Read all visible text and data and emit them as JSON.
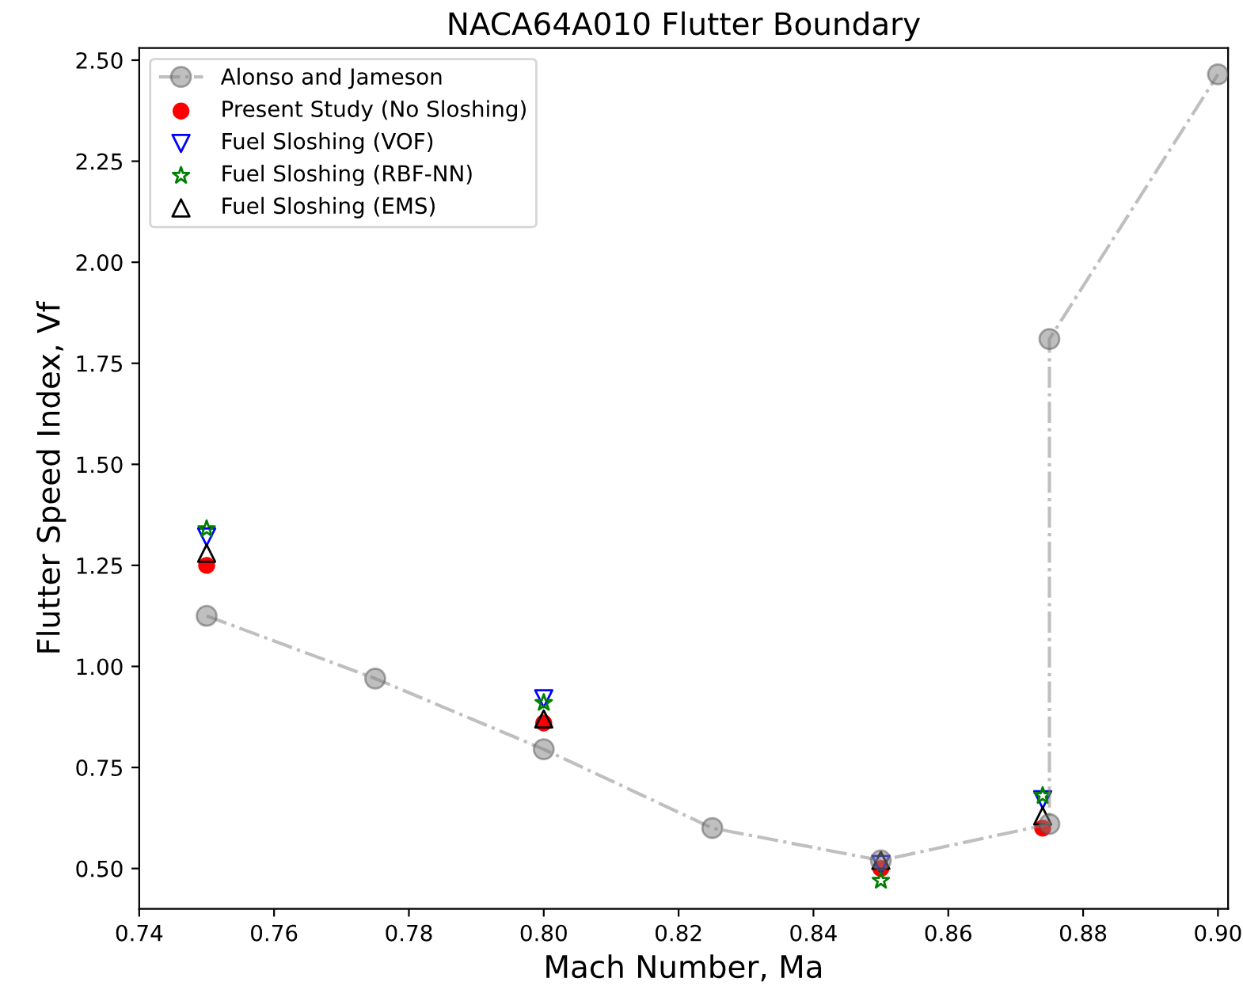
{
  "chart_data": {
    "type": "scatter",
    "title": "NACA64A010 Flutter Boundary",
    "xlabel": "Mach Number, Ma",
    "ylabel": "Flutter Speed Index, Vf",
    "xlim": [
      0.74,
      0.9015
    ],
    "ylim": [
      0.4,
      2.53
    ],
    "xticks": [
      {
        "value": 0.74,
        "label": "0.74"
      },
      {
        "value": 0.76,
        "label": "0.76"
      },
      {
        "value": 0.78,
        "label": "0.78"
      },
      {
        "value": 0.8,
        "label": "0.80"
      },
      {
        "value": 0.82,
        "label": "0.82"
      },
      {
        "value": 0.84,
        "label": "0.84"
      },
      {
        "value": 0.86,
        "label": "0.86"
      },
      {
        "value": 0.88,
        "label": "0.88"
      },
      {
        "value": 0.9,
        "label": "0.90"
      }
    ],
    "yticks": [
      {
        "value": 0.5,
        "label": "0.50"
      },
      {
        "value": 0.75,
        "label": "0.75"
      },
      {
        "value": 1.0,
        "label": "1.00"
      },
      {
        "value": 1.25,
        "label": "1.25"
      },
      {
        "value": 1.5,
        "label": "1.50"
      },
      {
        "value": 1.75,
        "label": "1.75"
      },
      {
        "value": 2.0,
        "label": "2.00"
      },
      {
        "value": 2.25,
        "label": "2.25"
      },
      {
        "value": 2.5,
        "label": "2.50"
      }
    ],
    "grid": false,
    "legend": "top left",
    "series": [
      {
        "name": "Alonso and Jameson",
        "type": "line",
        "color": "#808080",
        "marker": "circle",
        "line_style": "dashdot",
        "x": [
          0.75,
          0.775,
          0.8,
          0.825,
          0.85,
          0.875,
          0.875,
          0.9
        ],
        "values": [
          1.125,
          0.97,
          0.795,
          0.6,
          0.52,
          0.61,
          1.81,
          2.465
        ]
      },
      {
        "name": "Present Study (No Sloshing)",
        "color": "#ff0000",
        "marker": "circle",
        "x": [
          0.75,
          0.8,
          0.85,
          0.874
        ],
        "values": [
          1.25,
          0.86,
          0.5,
          0.6
        ]
      },
      {
        "name": "Fuel Sloshing (VOF)",
        "color": "#0000ff",
        "marker": "triangle_down",
        "x": [
          0.75,
          0.8,
          0.85,
          0.874
        ],
        "values": [
          1.32,
          0.92,
          0.51,
          0.67
        ]
      },
      {
        "name": "Fuel Sloshing (RBF-NN)",
        "color": "#008000",
        "marker": "star",
        "x": [
          0.75,
          0.8,
          0.85,
          0.874
        ],
        "values": [
          1.34,
          0.91,
          0.47,
          0.68
        ]
      },
      {
        "name": "Fuel Sloshing (EMS)",
        "color": "#000000",
        "marker": "triangle",
        "x": [
          0.75,
          0.8,
          0.85,
          0.874
        ],
        "values": [
          1.28,
          0.87,
          0.52,
          0.63
        ]
      }
    ]
  }
}
